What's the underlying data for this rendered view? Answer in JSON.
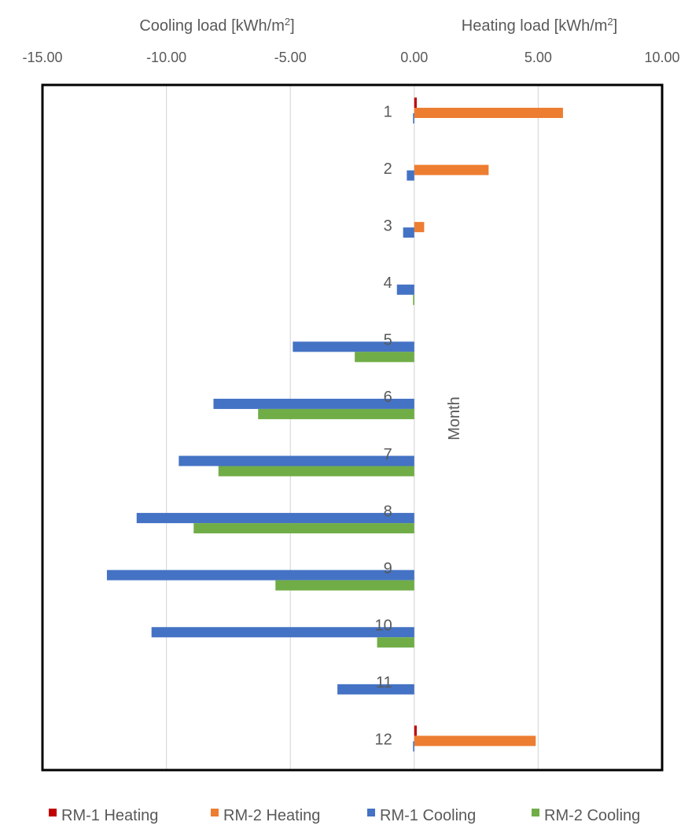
{
  "chart_data": {
    "type": "bar",
    "orientation": "horizontal",
    "x_axis_left_title": "Cooling load [kWh/m",
    "x_axis_right_title": "Heating load [kWh/m",
    "x_axis_title_superscript": "2",
    "x_axis_title_suffix": "]",
    "y_axis_title": "Month",
    "xlim": [
      -15,
      10
    ],
    "x_ticks": [
      -15,
      -10,
      -5,
      0,
      5,
      10
    ],
    "x_tick_labels": [
      "-15.00",
      "-10.00",
      "-5.00",
      "0.00",
      "5.00",
      "10.00"
    ],
    "grid": "vertical",
    "legend_position": "bottom",
    "categories": [
      "1",
      "2",
      "3",
      "4",
      "5",
      "6",
      "7",
      "8",
      "9",
      "10",
      "11",
      "12"
    ],
    "series": [
      {
        "name": "RM-1 Heating",
        "color": "#c00000",
        "values": [
          0.1,
          0,
          0,
          0,
          0,
          0,
          0,
          0,
          0,
          0,
          0,
          0.1
        ]
      },
      {
        "name": "RM-2 Heating",
        "color": "#ed7d31",
        "values": [
          6.0,
          3.0,
          0.4,
          0,
          0,
          0,
          0,
          0,
          0,
          0,
          0,
          4.9
        ]
      },
      {
        "name": "RM-1 Cooling",
        "color": "#4472c4",
        "values": [
          -0.05,
          -0.3,
          -0.45,
          -0.7,
          -4.9,
          -8.1,
          -9.5,
          -11.2,
          -12.4,
          -10.6,
          -3.1,
          -0.05
        ]
      },
      {
        "name": "RM-2 Cooling",
        "color": "#70ad47",
        "values": [
          0,
          0,
          0,
          -0.05,
          -2.4,
          -6.3,
          -7.9,
          -8.9,
          -5.6,
          -1.5,
          0,
          0
        ]
      }
    ]
  }
}
